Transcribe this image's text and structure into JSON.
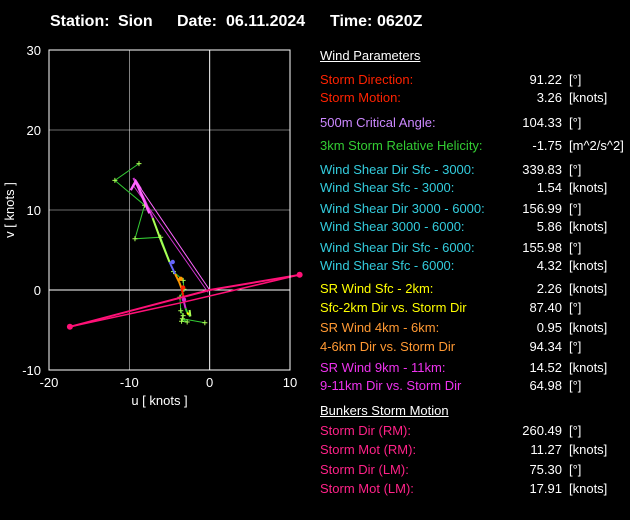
{
  "header": {
    "station_label": "Station:",
    "station": "Sion",
    "date_label": "Date:",
    "date": "06.11.2024",
    "time_label": "Time:",
    "time": "0620Z"
  },
  "chart_data": {
    "type": "line",
    "title": "",
    "xlabel": "u  [ knots ]",
    "ylabel": "v  [ knots ]",
    "xlim": [
      -20,
      10
    ],
    "ylim": [
      -10,
      30
    ],
    "xticks": [
      -20,
      -10,
      0,
      10
    ],
    "yticks": [
      -10,
      0,
      10,
      20,
      30
    ],
    "grid": true,
    "colors": {
      "frame": "#ffffff",
      "grid": "#ffffff",
      "axis_zero": "#ffffff",
      "hodo_green": "#33cc33",
      "hodo_light": "#aaff55",
      "hodo_yellow": "#ffff00",
      "hodo_orange": "#ff9900",
      "hodo_red": "#ff2200",
      "hodo_violet": "#cc33cc",
      "hodo_blue": "#6666ff",
      "storm_vector": "#ff66ff",
      "bunkers": "#ff1177"
    },
    "hodograph_outer": {
      "x": [
        -8.8,
        -11.8,
        -8.1,
        -9.3,
        -6.1,
        -4.5,
        -3.3,
        -3.2,
        -3.7,
        -3.6,
        -3.3,
        -3.5,
        -2.8,
        -3.4,
        -0.6
      ],
      "y": [
        15.8,
        13.7,
        10.6,
        6.4,
        6.6,
        2.3,
        1.2,
        0.1,
        -0.9,
        -2.6,
        -3.2,
        -3.9,
        -4.0,
        -3.6,
        -4.1
      ]
    },
    "hodograph_inner": {
      "x": [
        -9.5,
        -8.2,
        -7.1,
        -6.0,
        -5.0,
        -4.3,
        -3.8,
        -3.5,
        -3.3,
        -3.2,
        -3.0,
        -2.8,
        -2.6,
        -2.4,
        -2.5
      ],
      "y": [
        14.0,
        11.5,
        9.0,
        6.0,
        3.5,
        2.0,
        1.0,
        0.2,
        -0.6,
        -1.5,
        -2.3,
        -2.8,
        -3.1,
        -3.3,
        -2.5
      ]
    },
    "storm_motion_vector": {
      "x": [
        0,
        -9.2
      ],
      "y": [
        0,
        13.6
      ]
    },
    "storm_motion_path": {
      "x": [
        -9.6,
        -0.2
      ],
      "y": [
        13.2,
        -0.3
      ]
    },
    "bunkers_rm": {
      "x": [
        0,
        11.2
      ],
      "y": [
        0,
        1.9
      ]
    },
    "bunkers_lm": {
      "x": [
        0,
        -17.4
      ],
      "y": [
        0,
        -4.6
      ]
    }
  },
  "panel": {
    "wind_title": "Wind Parameters",
    "bunkers_title": "Bunkers Storm Motion",
    "rows": [
      {
        "label": "Storm Direction:",
        "value": "91.22",
        "unit": "[°]",
        "color": "#ff2200"
      },
      {
        "label": "Storm Motion:",
        "value": "3.26",
        "unit": "[knots]",
        "color": "#ff2200"
      },
      {
        "label": "500m Critical Angle:",
        "value": "104.33",
        "unit": "[°]",
        "color": "#cc88ff"
      },
      {
        "label": "3km Storm Relative Helicity:",
        "value": "-1.75",
        "unit": "[m^2/s^2]",
        "color": "#33cc33"
      },
      {
        "label": "Wind Shear Dir Sfc - 3000:",
        "value": "339.83",
        "unit": "[°]",
        "color": "#33ccdd"
      },
      {
        "label": "Wind Shear Sfc - 3000:",
        "value": "1.54",
        "unit": "[knots]",
        "color": "#33ccdd"
      },
      {
        "label": "Wind Shear Dir 3000 - 6000:",
        "value": "156.99",
        "unit": "[°]",
        "color": "#33ccdd"
      },
      {
        "label": "Wind Shear 3000 - 6000:",
        "value": "5.86",
        "unit": "[knots]",
        "color": "#33ccdd"
      },
      {
        "label": "Wind Shear Dir Sfc - 6000:",
        "value": "155.98",
        "unit": "[°]",
        "color": "#33ccdd"
      },
      {
        "label": "Wind Shear Sfc - 6000:",
        "value": "4.32",
        "unit": "[knots]",
        "color": "#33ccdd"
      },
      {
        "label": "SR Wind Sfc - 2km:",
        "value": "2.26",
        "unit": "[knots]",
        "color": "#ffff00"
      },
      {
        "label": "Sfc-2km Dir vs. Storm Dir",
        "value": "87.40",
        "unit": "[°]",
        "color": "#ffff00"
      },
      {
        "label": "SR Wind 4km - 6km:",
        "value": "0.95",
        "unit": "[knots]",
        "color": "#ff9933"
      },
      {
        "label": "4-6km Dir vs. Storm Dir",
        "value": "94.34",
        "unit": "[°]",
        "color": "#ff9933"
      },
      {
        "label": "SR Wind 9km - 11km:",
        "value": "14.52",
        "unit": "[knots]",
        "color": "#ee33ee"
      },
      {
        "label": "9-11km Dir vs. Storm Dir",
        "value": "64.98",
        "unit": "[°]",
        "color": "#ee33ee"
      },
      {
        "label": "Storm Dir (RM):",
        "value": "260.49",
        "unit": "[°]",
        "color": "#ff2288"
      },
      {
        "label": "Storm Mot (RM):",
        "value": "11.27",
        "unit": "[knots]",
        "color": "#ff2288"
      },
      {
        "label": "Storm Dir (LM):",
        "value": "75.30",
        "unit": "[°]",
        "color": "#ff2288"
      },
      {
        "label": "Storm Mot (LM):",
        "value": "17.91",
        "unit": "[knots]",
        "color": "#ff2288"
      }
    ]
  }
}
